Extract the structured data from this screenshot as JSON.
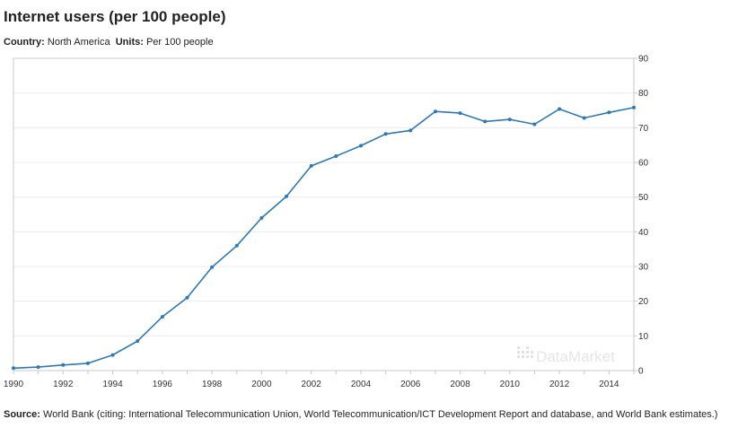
{
  "header": {
    "title": "Internet users (per 100 people)",
    "country_label": "Country:",
    "country_value": "North America",
    "units_label": "Units:",
    "units_value": "Per 100 people"
  },
  "footer": {
    "source_label": "Source:",
    "source_text": "World Bank (citing: International Telecommunication Union, World Telecommunication/ICT Development Report and database, and World Bank estimates.)"
  },
  "watermark": {
    "text": "DataMarket"
  },
  "colors": {
    "line": "#2f78b4",
    "grid": "#ececec",
    "frame": "#c8c8c8"
  },
  "chart_data": {
    "type": "line",
    "title": "Internet users (per 100 people)",
    "xlabel": "",
    "ylabel": "",
    "xlim": [
      1990,
      2015
    ],
    "ylim": [
      0,
      90
    ],
    "x_ticks": [
      "1990",
      "1992",
      "1994",
      "1996",
      "1998",
      "2000",
      "2002",
      "2004",
      "2006",
      "2008",
      "2010",
      "2012",
      "2014"
    ],
    "y_ticks": [
      "0",
      "10",
      "20",
      "30",
      "40",
      "50",
      "60",
      "70",
      "80",
      "90"
    ],
    "grid": true,
    "y_axis_side": "right",
    "series": [
      {
        "name": "North America",
        "x": [
          1990,
          1991,
          1992,
          1993,
          1994,
          1995,
          1996,
          1997,
          1998,
          1999,
          2000,
          2001,
          2002,
          2003,
          2004,
          2005,
          2006,
          2007,
          2008,
          2009,
          2010,
          2011,
          2012,
          2013,
          2014,
          2015
        ],
        "values": [
          0.7,
          1.0,
          1.6,
          2.1,
          4.5,
          8.5,
          15.5,
          21.0,
          29.8,
          36.0,
          44.0,
          50.2,
          59.0,
          61.8,
          64.8,
          68.2,
          69.2,
          74.7,
          74.2,
          71.8,
          72.4,
          71.0,
          75.4,
          72.8,
          74.4,
          75.8
        ]
      }
    ]
  }
}
